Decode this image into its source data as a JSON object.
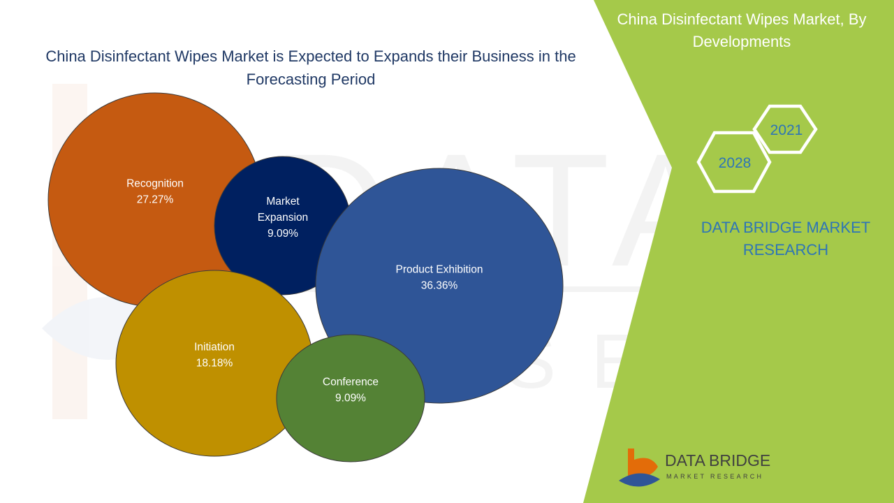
{
  "title": "China Disinfectant Wipes Market is Expected to Expands their Business in the Forecasting Period",
  "side_panel": {
    "title": "China Disinfectant Wipes Market, By Developments",
    "year_a": "2021",
    "year_b": "2028",
    "brand_text": "DATA BRIDGE MARKET RESEARCH",
    "logo_name": "DATA BRIDGE",
    "logo_sub": "MARKET RESEARCH"
  },
  "colors": {
    "panel_green": "#a5c94a",
    "title_navy": "#1f3864",
    "brand_blue": "#2e75b6"
  },
  "chart_data": {
    "type": "bubble",
    "title": "China Disinfectant Wipes Market is Expected to Expands their Business in the Forecasting Period",
    "unit": "%",
    "series": [
      {
        "name": "Recognition",
        "value": 27.27,
        "label": "27.27%",
        "color": "#c55a11"
      },
      {
        "name": "Market Expansion",
        "value": 9.09,
        "label": "9.09%",
        "color": "#002060"
      },
      {
        "name": "Product Exhibition",
        "value": 36.36,
        "label": "36.36%",
        "color": "#2f5597"
      },
      {
        "name": "Initiation",
        "value": 18.18,
        "label": "18.18%",
        "color": "#bf9000"
      },
      {
        "name": "Conference",
        "value": 9.09,
        "label": "9.09%",
        "color": "#548235"
      }
    ]
  }
}
